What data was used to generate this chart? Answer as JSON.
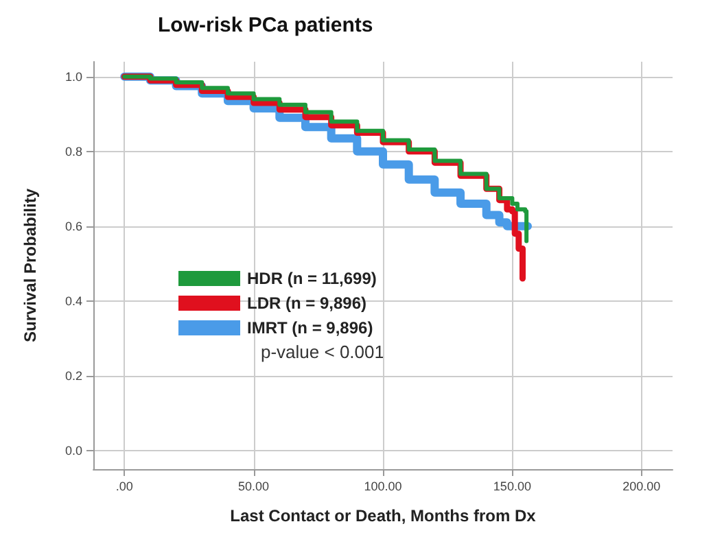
{
  "chart_data": {
    "type": "step",
    "title": "Low-risk PCa patients",
    "xlabel": "Last Contact or Death, Months from Dx",
    "ylabel": "Survival Probability",
    "xlim": [
      -12,
      212
    ],
    "xticks": [
      {
        "value": 0,
        "label": ".00"
      },
      {
        "value": 50,
        "label": "50.00"
      },
      {
        "value": 100,
        "label": "100.00"
      },
      {
        "value": 150,
        "label": "150.00"
      },
      {
        "value": 200,
        "label": "200.00"
      }
    ],
    "ylim": [
      -0.05,
      1.04
    ],
    "yticks": [
      {
        "value": 0,
        "label": "0.0"
      },
      {
        "value": 0.2,
        "label": "0.2"
      },
      {
        "value": 0.4,
        "label": "0.4"
      },
      {
        "value": 0.6,
        "label": "0.6"
      },
      {
        "value": 0.8,
        "label": "0.8"
      },
      {
        "value": 1,
        "label": "1.0"
      }
    ],
    "grid": true,
    "legend": "center",
    "line_style": "solid",
    "marker": "none",
    "annotations": [
      "p-value < 0.001"
    ],
    "series": [
      {
        "name": "HDR (n = 11,699)",
        "color": "#1e9a3c",
        "x": [
          0,
          10,
          20,
          30,
          40,
          50,
          60,
          70,
          80,
          90,
          100,
          110,
          120,
          130,
          140,
          145,
          150,
          152,
          155,
          155.5
        ],
        "values": [
          1.0,
          0.995,
          0.985,
          0.97,
          0.955,
          0.94,
          0.925,
          0.905,
          0.88,
          0.855,
          0.83,
          0.805,
          0.775,
          0.74,
          0.7,
          0.675,
          0.66,
          0.645,
          0.64,
          0.56
        ]
      },
      {
        "name": "LDR (n = 9,896)",
        "color": "#e0101e",
        "x": [
          0,
          10,
          20,
          30,
          40,
          50,
          60,
          70,
          80,
          90,
          100,
          110,
          120,
          130,
          140,
          145,
          148,
          150,
          151,
          152.5,
          154
        ],
        "values": [
          1.0,
          0.99,
          0.978,
          0.962,
          0.946,
          0.93,
          0.912,
          0.892,
          0.87,
          0.85,
          0.825,
          0.8,
          0.77,
          0.735,
          0.7,
          0.67,
          0.645,
          0.64,
          0.58,
          0.54,
          0.46
        ]
      },
      {
        "name": "IMRT (n = 9,896)",
        "color": "#4a9be8",
        "x": [
          0,
          10,
          20,
          30,
          40,
          50,
          60,
          70,
          80,
          90,
          100,
          110,
          120,
          130,
          140,
          145,
          148,
          156
        ],
        "values": [
          1.0,
          0.99,
          0.975,
          0.955,
          0.935,
          0.915,
          0.89,
          0.865,
          0.835,
          0.8,
          0.765,
          0.725,
          0.69,
          0.66,
          0.63,
          0.61,
          0.6,
          0.6
        ]
      }
    ]
  }
}
